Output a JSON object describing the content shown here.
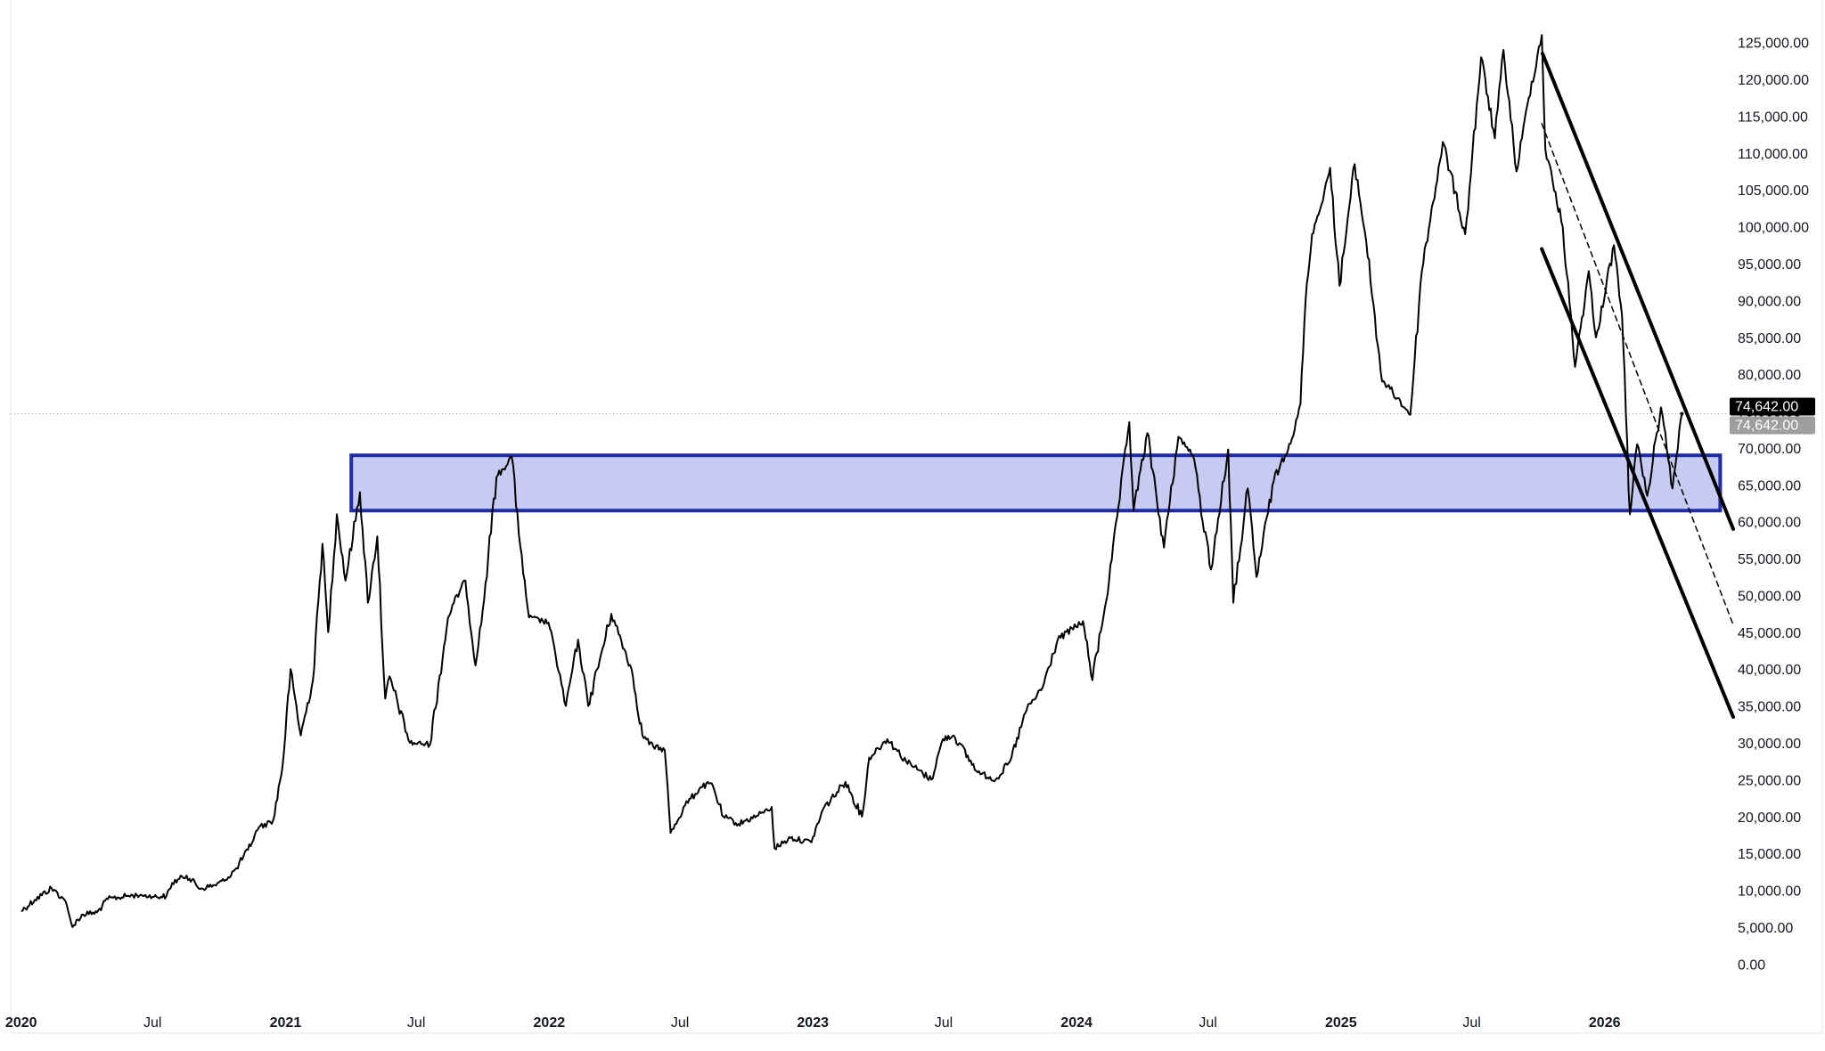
{
  "chart_data": {
    "type": "line",
    "title": "",
    "xlabel": "",
    "ylabel": "",
    "ylim": [
      -2500,
      127500
    ],
    "xlim": [
      "2019-12-20",
      "2026-06-28"
    ],
    "y_axis": {
      "position": "right",
      "ticks": [
        0,
        5000,
        10000,
        15000,
        20000,
        25000,
        30000,
        35000,
        40000,
        45000,
        50000,
        55000,
        60000,
        65000,
        70000,
        75000,
        80000,
        85000,
        90000,
        95000,
        100000,
        105000,
        110000,
        115000,
        120000,
        125000
      ],
      "tick_labels": [
        "0.00",
        "5,000.00",
        "10,000.00",
        "15,000.00",
        "20,000.00",
        "25,000.00",
        "30,000.00",
        "35,000.00",
        "40,000.00",
        "45,000.00",
        "50,000.00",
        "55,000.00",
        "60,000.00",
        "65,000.00",
        "70,000.00",
        "75,000.00",
        "80,000.00",
        "85,000.00",
        "90,000.00",
        "95,000.00",
        "100,000.00",
        "105,000.00",
        "110,000.00",
        "115,000.00",
        "120,000.00",
        "125,000.00"
      ]
    },
    "x_axis": {
      "ticks": [
        {
          "date": "2020-01-01",
          "label": "2020",
          "bold": true
        },
        {
          "date": "2020-07-01",
          "label": "Jul",
          "bold": false
        },
        {
          "date": "2021-01-01",
          "label": "2021",
          "bold": true
        },
        {
          "date": "2021-07-01",
          "label": "Jul",
          "bold": false
        },
        {
          "date": "2022-01-01",
          "label": "2022",
          "bold": true
        },
        {
          "date": "2022-07-01",
          "label": "Jul",
          "bold": false
        },
        {
          "date": "2023-01-01",
          "label": "2023",
          "bold": true
        },
        {
          "date": "2023-07-01",
          "label": "Jul",
          "bold": false
        },
        {
          "date": "2024-01-01",
          "label": "2024",
          "bold": true
        },
        {
          "date": "2024-07-01",
          "label": "Jul",
          "bold": false
        },
        {
          "date": "2025-01-01",
          "label": "2025",
          "bold": true
        },
        {
          "date": "2025-07-01",
          "label": "Jul",
          "bold": false
        },
        {
          "date": "2026-01-01",
          "label": "2026",
          "bold": true
        }
      ]
    },
    "grid": false,
    "series": [
      {
        "color": "#000000",
        "points": [
          [
            "2020-01-01",
            7200
          ],
          [
            "2020-01-20",
            8700
          ],
          [
            "2020-02-12",
            10300
          ],
          [
            "2020-03-01",
            8700
          ],
          [
            "2020-03-12",
            5000
          ],
          [
            "2020-03-25",
            6700
          ],
          [
            "2020-04-15",
            7000
          ],
          [
            "2020-04-30",
            8800
          ],
          [
            "2020-05-25",
            9200
          ],
          [
            "2020-06-15",
            9400
          ],
          [
            "2020-07-01",
            9100
          ],
          [
            "2020-07-20",
            9200
          ],
          [
            "2020-07-28",
            11000
          ],
          [
            "2020-08-17",
            12000
          ],
          [
            "2020-09-05",
            10200
          ],
          [
            "2020-09-25",
            10700
          ],
          [
            "2020-10-10",
            11400
          ],
          [
            "2020-10-25",
            13000
          ],
          [
            "2020-11-10",
            15500
          ],
          [
            "2020-11-25",
            18500
          ],
          [
            "2020-12-15",
            19500
          ],
          [
            "2020-12-28",
            27000
          ],
          [
            "2021-01-08",
            40000
          ],
          [
            "2021-01-22",
            31000
          ],
          [
            "2021-02-08",
            38500
          ],
          [
            "2021-02-21",
            57000
          ],
          [
            "2021-03-01",
            45000
          ],
          [
            "2021-03-13",
            61000
          ],
          [
            "2021-03-25",
            52000
          ],
          [
            "2021-04-14",
            64000
          ],
          [
            "2021-04-25",
            49000
          ],
          [
            "2021-05-08",
            58000
          ],
          [
            "2021-05-19",
            36000
          ],
          [
            "2021-05-25",
            39000
          ],
          [
            "2021-06-22",
            30000
          ],
          [
            "2021-07-20",
            29800
          ],
          [
            "2021-08-14",
            47000
          ],
          [
            "2021-08-22",
            49000
          ],
          [
            "2021-09-07",
            52000
          ],
          [
            "2021-09-21",
            40500
          ],
          [
            "2021-10-01",
            48000
          ],
          [
            "2021-10-20",
            66000
          ],
          [
            "2021-11-10",
            68800
          ],
          [
            "2021-11-26",
            53000
          ],
          [
            "2021-12-04",
            47000
          ],
          [
            "2021-12-31",
            46300
          ],
          [
            "2022-01-10",
            41800
          ],
          [
            "2022-01-24",
            35000
          ],
          [
            "2022-02-10",
            44000
          ],
          [
            "2022-02-24",
            35000
          ],
          [
            "2022-03-28",
            47500
          ],
          [
            "2022-04-25",
            40000
          ],
          [
            "2022-05-10",
            31000
          ],
          [
            "2022-05-25",
            29500
          ],
          [
            "2022-06-10",
            29000
          ],
          [
            "2022-06-18",
            17800
          ],
          [
            "2022-07-08",
            21500
          ],
          [
            "2022-07-30",
            24000
          ],
          [
            "2022-08-14",
            24500
          ],
          [
            "2022-08-30",
            20000
          ],
          [
            "2022-09-20",
            19000
          ],
          [
            "2022-10-25",
            20500
          ],
          [
            "2022-11-05",
            21300
          ],
          [
            "2022-11-09",
            15700
          ],
          [
            "2022-12-01",
            17100
          ],
          [
            "2022-12-30",
            16500
          ],
          [
            "2023-01-15",
            21000
          ],
          [
            "2023-02-15",
            24700
          ],
          [
            "2023-03-10",
            20000
          ],
          [
            "2023-03-20",
            28000
          ],
          [
            "2023-04-14",
            30500
          ],
          [
            "2023-05-10",
            27500
          ],
          [
            "2023-06-14",
            25000
          ],
          [
            "2023-06-30",
            30500
          ],
          [
            "2023-07-15",
            31000
          ],
          [
            "2023-08-17",
            26000
          ],
          [
            "2023-09-11",
            25000
          ],
          [
            "2023-10-01",
            27500
          ],
          [
            "2023-10-24",
            34500
          ],
          [
            "2023-11-15",
            37500
          ],
          [
            "2023-12-06",
            44000
          ],
          [
            "2024-01-10",
            46500
          ],
          [
            "2024-01-23",
            38500
          ],
          [
            "2024-02-15",
            52000
          ],
          [
            "2024-02-28",
            62000
          ],
          [
            "2024-03-14",
            73500
          ],
          [
            "2024-03-20",
            61500
          ],
          [
            "2024-04-08",
            72000
          ],
          [
            "2024-05-01",
            56500
          ],
          [
            "2024-05-21",
            71500
          ],
          [
            "2024-06-10",
            69000
          ],
          [
            "2024-07-05",
            53500
          ],
          [
            "2024-07-29",
            69800
          ],
          [
            "2024-08-05",
            49000
          ],
          [
            "2024-08-25",
            64500
          ],
          [
            "2024-09-06",
            52500
          ],
          [
            "2024-09-30",
            65500
          ],
          [
            "2024-10-29",
            72500
          ],
          [
            "2024-11-06",
            76000
          ],
          [
            "2024-11-13",
            90000
          ],
          [
            "2024-11-22",
            99000
          ],
          [
            "2024-12-05",
            103000
          ],
          [
            "2024-12-17",
            108000
          ],
          [
            "2024-12-30",
            92000
          ],
          [
            "2025-01-20",
            108500
          ],
          [
            "2025-02-05",
            98000
          ],
          [
            "2025-02-27",
            79000
          ],
          [
            "2025-03-10",
            78000
          ],
          [
            "2025-04-07",
            74500
          ],
          [
            "2025-04-23",
            94000
          ],
          [
            "2025-05-22",
            111500
          ],
          [
            "2025-06-22",
            99000
          ],
          [
            "2025-07-14",
            123000
          ],
          [
            "2025-08-02",
            112000
          ],
          [
            "2025-08-14",
            124000
          ],
          [
            "2025-09-01",
            107500
          ],
          [
            "2025-09-18",
            117500
          ],
          [
            "2025-10-06",
            126000
          ],
          [
            "2025-10-11",
            110500
          ],
          [
            "2025-11-04",
            100000
          ],
          [
            "2025-11-21",
            81000
          ],
          [
            "2025-12-10",
            94000
          ],
          [
            "2025-12-20",
            85000
          ],
          [
            "2026-01-14",
            97500
          ],
          [
            "2026-01-25",
            88000
          ],
          [
            "2026-02-05",
            61000
          ],
          [
            "2026-02-15",
            70500
          ],
          [
            "2026-03-01",
            63500
          ],
          [
            "2026-03-20",
            75500
          ],
          [
            "2026-04-05",
            64500
          ],
          [
            "2026-04-18",
            74642
          ]
        ]
      }
    ],
    "last_price": 74642,
    "last_price_labels": [
      "74,642.00",
      "74,642.00"
    ],
    "last_price_colors": [
      "#000000",
      "#9e9e9e"
    ],
    "zone": {
      "x_start": "2021-04-02",
      "x_end": "2026-06-10",
      "y_bottom": 61500,
      "y_top": 69000,
      "fill": "#c5c8f0",
      "stroke": "#1f2ba8"
    },
    "trendlines": [
      {
        "style": "solid",
        "from": [
          "2025-10-07",
          123500
        ],
        "to": [
          "2026-06-28",
          59000
        ]
      },
      {
        "style": "solid",
        "from": [
          "2025-10-06",
          97000
        ],
        "to": [
          "2026-06-28",
          33500
        ]
      },
      {
        "style": "dashed",
        "from": [
          "2025-10-06",
          114000
        ],
        "to": [
          "2026-06-28",
          46000
        ]
      }
    ]
  }
}
